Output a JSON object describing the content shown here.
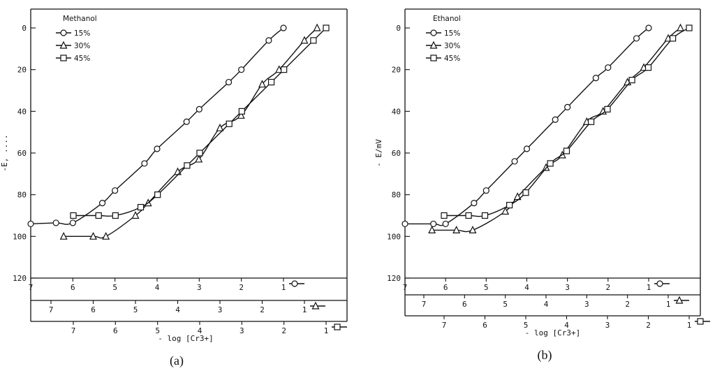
{
  "chart_data": [
    {
      "type": "line",
      "caption": "(a)",
      "legend_title": "Methanol",
      "ylabel": "-E, ....",
      "xlabel": "- log [Cr3+]",
      "ylim": [
        0,
        120
      ],
      "yticks": [
        0,
        20,
        40,
        60,
        80,
        100,
        120
      ],
      "xticks_main": [
        7,
        6,
        5,
        4,
        3,
        2,
        1
      ],
      "xticks_2": [
        7,
        6,
        5,
        4,
        3,
        2,
        1
      ],
      "xticks_3": [
        7,
        6,
        5,
        4,
        3,
        2,
        1
      ],
      "grid": false,
      "legend_position": "top-left",
      "series": [
        {
          "name": "15%",
          "marker": "circle",
          "axis": 1,
          "points": [
            [
              7.0,
              94
            ],
            [
              6.4,
              93.5
            ],
            [
              6.0,
              93.5
            ],
            [
              5.3,
              84
            ],
            [
              5.0,
              78
            ],
            [
              4.3,
              65
            ],
            [
              4.0,
              58
            ],
            [
              3.3,
              45
            ],
            [
              3.0,
              39
            ],
            [
              2.3,
              26
            ],
            [
              2.0,
              20
            ],
            [
              1.35,
              6
            ],
            [
              1.0,
              0
            ]
          ]
        },
        {
          "name": "30%",
          "marker": "triangle",
          "axis": 2,
          "points": [
            [
              6.7,
              100
            ],
            [
              6.0,
              100
            ],
            [
              5.7,
              100
            ],
            [
              5.0,
              90
            ],
            [
              4.7,
              84
            ],
            [
              4.0,
              69
            ],
            [
              3.5,
              63
            ],
            [
              3.0,
              48
            ],
            [
              2.5,
              42
            ],
            [
              2.0,
              27
            ],
            [
              1.6,
              20
            ],
            [
              1.0,
              6
            ],
            [
              0.7,
              0
            ]
          ]
        },
        {
          "name": "45%",
          "marker": "square",
          "axis": 3,
          "points": [
            [
              7.0,
              90
            ],
            [
              6.4,
              90
            ],
            [
              6.0,
              90
            ],
            [
              5.4,
              86
            ],
            [
              5.0,
              80
            ],
            [
              4.3,
              66
            ],
            [
              4.0,
              60
            ],
            [
              3.3,
              46
            ],
            [
              3.0,
              40
            ],
            [
              2.3,
              26
            ],
            [
              2.0,
              20
            ],
            [
              1.3,
              6
            ],
            [
              1.0,
              0
            ]
          ]
        }
      ]
    },
    {
      "type": "line",
      "caption": "(b)",
      "legend_title": "Ethanol",
      "ylabel": "- E/mV",
      "xlabel": "- log [Cr3+]",
      "ylim": [
        0,
        120
      ],
      "yticks": [
        0,
        20,
        40,
        60,
        80,
        100,
        120
      ],
      "xticks_main": [
        7,
        6,
        5,
        4,
        3,
        2,
        1
      ],
      "xticks_2": [
        7,
        6,
        5,
        4,
        3,
        2,
        1
      ],
      "xticks_3": [
        7,
        6,
        5,
        4,
        3,
        2,
        1
      ],
      "grid": false,
      "legend_position": "top-left",
      "series": [
        {
          "name": "15%",
          "marker": "circle",
          "axis": 1,
          "points": [
            [
              7.0,
              94
            ],
            [
              6.3,
              94
            ],
            [
              6.0,
              94
            ],
            [
              5.3,
              84
            ],
            [
              5.0,
              78
            ],
            [
              4.3,
              64
            ],
            [
              4.0,
              58
            ],
            [
              3.3,
              44
            ],
            [
              3.0,
              38
            ],
            [
              2.3,
              24
            ],
            [
              2.0,
              19
            ],
            [
              1.3,
              5
            ],
            [
              1.0,
              0
            ]
          ]
        },
        {
          "name": "30%",
          "marker": "triangle",
          "axis": 2,
          "points": [
            [
              6.8,
              97
            ],
            [
              6.2,
              97
            ],
            [
              5.8,
              97
            ],
            [
              5.0,
              88
            ],
            [
              4.7,
              81
            ],
            [
              4.0,
              67
            ],
            [
              3.6,
              61
            ],
            [
              3.0,
              45
            ],
            [
              2.6,
              40
            ],
            [
              2.0,
              26
            ],
            [
              1.6,
              19
            ],
            [
              1.0,
              5
            ],
            [
              0.7,
              0
            ]
          ]
        },
        {
          "name": "45%",
          "marker": "square",
          "axis": 3,
          "points": [
            [
              7.0,
              90
            ],
            [
              6.4,
              90
            ],
            [
              6.0,
              90
            ],
            [
              5.4,
              85
            ],
            [
              5.0,
              79
            ],
            [
              4.4,
              65
            ],
            [
              4.0,
              59
            ],
            [
              3.4,
              45
            ],
            [
              3.0,
              39
            ],
            [
              2.4,
              25
            ],
            [
              2.0,
              19
            ],
            [
              1.4,
              5
            ],
            [
              1.0,
              0
            ]
          ]
        }
      ]
    }
  ]
}
